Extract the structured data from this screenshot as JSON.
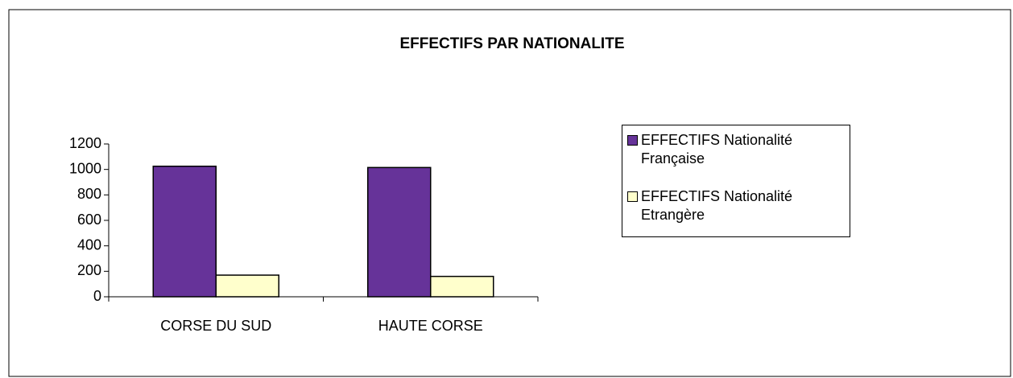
{
  "chart_data": {
    "type": "bar",
    "title": "EFFECTIFS PAR NATIONALITE",
    "categories": [
      "CORSE DU SUD",
      "HAUTE CORSE"
    ],
    "series": [
      {
        "name": "EFFECTIFS Nationalité Française",
        "color": "#663399",
        "values": [
          1025,
          1015
        ]
      },
      {
        "name": "EFFECTIFS Nationalité Etrangère",
        "color": "#ffffcc",
        "values": [
          170,
          160
        ]
      }
    ],
    "ylim": [
      0,
      1200
    ],
    "yticks": [
      0,
      200,
      400,
      600,
      800,
      1000,
      1200
    ],
    "grid": false,
    "legend": "right"
  }
}
